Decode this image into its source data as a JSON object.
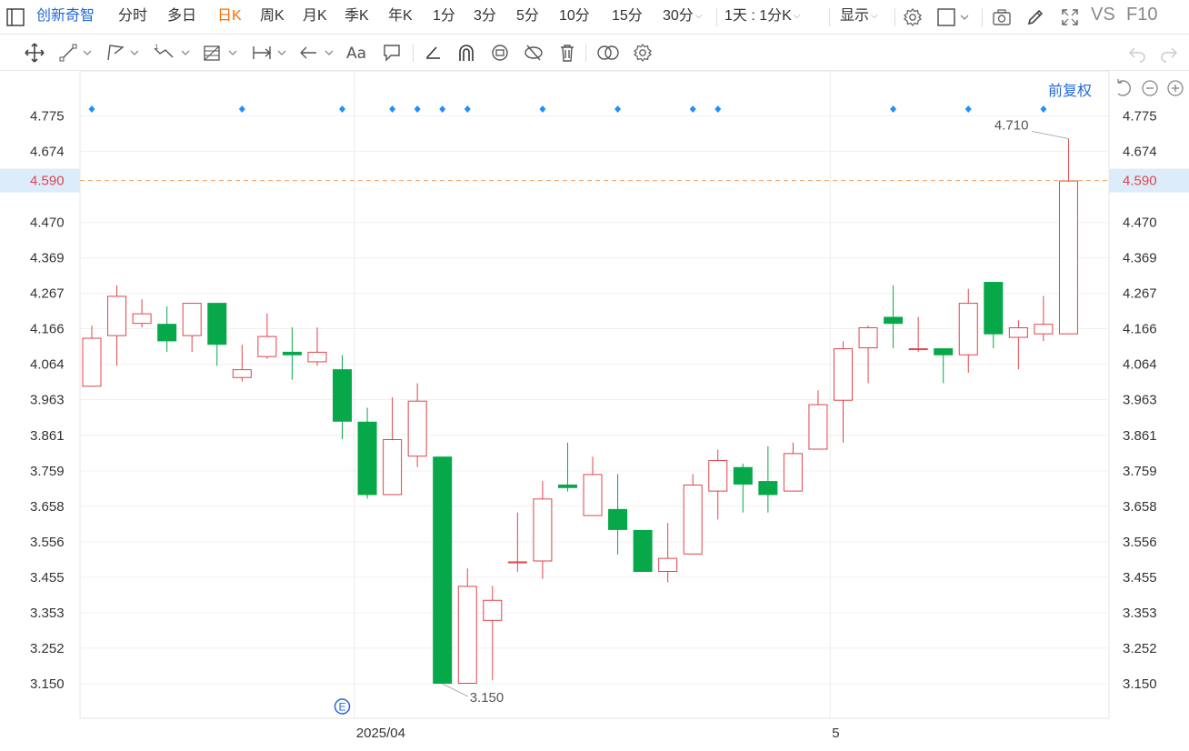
{
  "toolbar": {
    "stock_name": "创新奇智",
    "periods": [
      {
        "label": "分时",
        "active": false
      },
      {
        "label": "多日",
        "active": false
      },
      {
        "label": "日K",
        "active": true
      },
      {
        "label": "周K",
        "active": false
      },
      {
        "label": "月K",
        "active": false
      },
      {
        "label": "季K",
        "active": false
      },
      {
        "label": "年K",
        "active": false
      },
      {
        "label": "1分",
        "active": false
      },
      {
        "label": "3分",
        "active": false
      },
      {
        "label": "5分",
        "active": false
      },
      {
        "label": "10分",
        "active": false
      },
      {
        "label": "15分",
        "active": false
      },
      {
        "label": "30分",
        "active": false
      }
    ],
    "range_label": "1天 : 1分K",
    "display_label": "显示",
    "vs_label": "VS",
    "f10_label": "F10"
  },
  "restore_label": "前复权",
  "colors": {
    "up": "#e0444b",
    "down": "#06a84a",
    "accent": "#2468d8",
    "active": "#ff6a00",
    "marker": "#1e90ff"
  },
  "chart_data": {
    "type": "candlestick",
    "y_ticks": [
      "4.775",
      "4.674",
      "4.590",
      "4.470",
      "4.369",
      "4.267",
      "4.166",
      "4.064",
      "3.963",
      "3.861",
      "3.759",
      "3.658",
      "3.556",
      "3.455",
      "3.353",
      "3.252",
      "3.150"
    ],
    "ylim": [
      3.15,
      4.775
    ],
    "current_price": "4.590",
    "x_labels": [
      {
        "label": "2025/04",
        "index": 11
      },
      {
        "label": "5",
        "index": 30
      }
    ],
    "annotations": [
      {
        "label": "4.710",
        "index": 39,
        "value": 4.71
      },
      {
        "label": "3.150",
        "index": 14,
        "value": 3.15
      }
    ],
    "event_marker": {
      "label": "E",
      "index": 10
    },
    "top_markers": [
      0,
      6,
      10,
      12,
      13,
      14,
      15,
      18,
      21,
      24,
      25,
      32,
      35,
      38
    ],
    "candles": [
      {
        "o": 4.0,
        "h": 4.175,
        "l": 4.0,
        "c": 4.14
      },
      {
        "o": 4.145,
        "h": 4.29,
        "l": 4.06,
        "c": 4.26
      },
      {
        "o": 4.18,
        "h": 4.25,
        "l": 4.17,
        "c": 4.21
      },
      {
        "o": 4.18,
        "h": 4.23,
        "l": 4.1,
        "c": 4.13
      },
      {
        "o": 4.145,
        "h": 4.24,
        "l": 4.1,
        "c": 4.24
      },
      {
        "o": 4.24,
        "h": 4.24,
        "l": 4.06,
        "c": 4.12
      },
      {
        "o": 4.025,
        "h": 4.12,
        "l": 4.015,
        "c": 4.05
      },
      {
        "o": 4.085,
        "h": 4.21,
        "l": 4.08,
        "c": 4.145
      },
      {
        "o": 4.1,
        "h": 4.17,
        "l": 4.02,
        "c": 4.09
      },
      {
        "o": 4.07,
        "h": 4.17,
        "l": 4.06,
        "c": 4.1
      },
      {
        "o": 4.05,
        "h": 4.09,
        "l": 3.85,
        "c": 3.9
      },
      {
        "o": 3.9,
        "h": 3.94,
        "l": 3.68,
        "c": 3.69
      },
      {
        "o": 3.69,
        "h": 3.97,
        "l": 3.69,
        "c": 3.85
      },
      {
        "o": 3.8,
        "h": 4.01,
        "l": 3.77,
        "c": 3.96
      },
      {
        "o": 3.8,
        "h": 3.8,
        "l": 3.15,
        "c": 3.15
      },
      {
        "o": 3.15,
        "h": 3.48,
        "l": 3.15,
        "c": 3.43
      },
      {
        "o": 3.33,
        "h": 3.43,
        "l": 3.16,
        "c": 3.39
      },
      {
        "o": 3.5,
        "h": 3.64,
        "l": 3.47,
        "c": 3.5
      },
      {
        "o": 3.5,
        "h": 3.73,
        "l": 3.45,
        "c": 3.68
      },
      {
        "o": 3.72,
        "h": 3.84,
        "l": 3.7,
        "c": 3.71
      },
      {
        "o": 3.63,
        "h": 3.8,
        "l": 3.63,
        "c": 3.75
      },
      {
        "o": 3.65,
        "h": 3.75,
        "l": 3.52,
        "c": 3.59
      },
      {
        "o": 3.59,
        "h": 3.59,
        "l": 3.47,
        "c": 3.47
      },
      {
        "o": 3.47,
        "h": 3.61,
        "l": 3.44,
        "c": 3.51
      },
      {
        "o": 3.52,
        "h": 3.75,
        "l": 3.52,
        "c": 3.72
      },
      {
        "o": 3.7,
        "h": 3.82,
        "l": 3.62,
        "c": 3.79
      },
      {
        "o": 3.77,
        "h": 3.78,
        "l": 3.64,
        "c": 3.72
      },
      {
        "o": 3.73,
        "h": 3.83,
        "l": 3.64,
        "c": 3.69
      },
      {
        "o": 3.7,
        "h": 3.84,
        "l": 3.7,
        "c": 3.81
      },
      {
        "o": 3.82,
        "h": 3.99,
        "l": 3.82,
        "c": 3.95
      },
      {
        "o": 3.96,
        "h": 4.13,
        "l": 3.84,
        "c": 4.11
      },
      {
        "o": 4.11,
        "h": 4.175,
        "l": 4.01,
        "c": 4.17
      },
      {
        "o": 4.2,
        "h": 4.29,
        "l": 4.11,
        "c": 4.18
      },
      {
        "o": 4.11,
        "h": 4.2,
        "l": 4.1,
        "c": 4.11
      },
      {
        "o": 4.11,
        "h": 4.11,
        "l": 4.01,
        "c": 4.09
      },
      {
        "o": 4.09,
        "h": 4.28,
        "l": 4.04,
        "c": 4.24
      },
      {
        "o": 4.3,
        "h": 4.3,
        "l": 4.11,
        "c": 4.15
      },
      {
        "o": 4.14,
        "h": 4.19,
        "l": 4.05,
        "c": 4.17
      },
      {
        "o": 4.15,
        "h": 4.26,
        "l": 4.13,
        "c": 4.18
      },
      {
        "o": 4.15,
        "h": 4.71,
        "l": 4.15,
        "c": 4.59
      }
    ]
  }
}
